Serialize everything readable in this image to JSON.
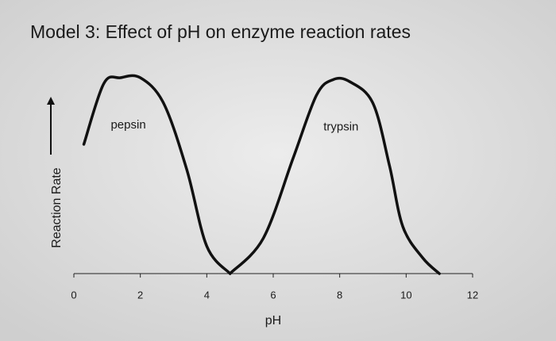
{
  "chart_data": {
    "type": "line",
    "title": "Model 3: Effect of pH on enzyme reaction rates",
    "xlabel": "pH",
    "ylabel": "Reaction Rate",
    "xlim": [
      0,
      12
    ],
    "xticks": [
      0,
      2,
      4,
      6,
      8,
      10,
      12
    ],
    "ylim": [
      0,
      100
    ],
    "series": [
      {
        "name": "pepsin",
        "color": "#111111",
        "x": [
          0.3,
          0.9,
          1.4,
          2.0,
          2.7,
          3.4,
          4.0,
          4.7
        ],
        "values": [
          66,
          97,
          100,
          100,
          87,
          53,
          14,
          0
        ]
      },
      {
        "name": "trypsin",
        "color": "#111111",
        "x": [
          4.7,
          5.7,
          6.6,
          7.3,
          7.8,
          8.3,
          9.0,
          9.5,
          9.9,
          10.5,
          11.0
        ],
        "values": [
          0,
          18,
          59,
          91,
          99,
          98,
          87,
          55,
          24,
          8,
          0
        ]
      }
    ]
  }
}
